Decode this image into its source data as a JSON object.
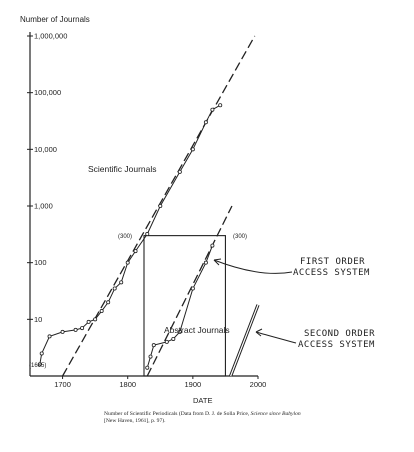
{
  "chart_data": {
    "type": "line",
    "y_scale": "log",
    "ylabel": "Number of Journals",
    "xlabel": "DATE",
    "xlim": [
      1650,
      2000
    ],
    "ylim": [
      1,
      1000000
    ],
    "x_ticks": [
      {
        "value": 1700,
        "label": "1700"
      },
      {
        "value": 1800,
        "label": "1800"
      },
      {
        "value": 1900,
        "label": "1900"
      },
      {
        "value": 2000,
        "label": "2000"
      }
    ],
    "y_ticks": [
      {
        "value": 10,
        "label": "10"
      },
      {
        "value": 100,
        "label": "100"
      },
      {
        "value": 1000,
        "label": "1,000"
      },
      {
        "value": 10000,
        "label": "10,000"
      },
      {
        "value": 100000,
        "label": "100,000"
      },
      {
        "value": 1000000,
        "label": "1,000,000"
      }
    ],
    "series": [
      {
        "name": "Scientific Journals",
        "points": [
          [
            1665,
            1.6
          ],
          [
            1668,
            2.5
          ],
          [
            1680,
            5
          ],
          [
            1700,
            6
          ],
          [
            1720,
            6.5
          ],
          [
            1730,
            7
          ],
          [
            1740,
            9
          ],
          [
            1750,
            10
          ],
          [
            1760,
            14
          ],
          [
            1770,
            20
          ],
          [
            1780,
            35
          ],
          [
            1790,
            45
          ],
          [
            1800,
            100
          ],
          [
            1812,
            160
          ],
          [
            1830,
            320
          ],
          [
            1850,
            1000
          ],
          [
            1880,
            4000
          ],
          [
            1900,
            10000
          ],
          [
            1920,
            30000
          ],
          [
            1930,
            50000
          ],
          [
            1942,
            60000
          ]
        ],
        "trend": [
          [
            1700,
            1
          ],
          [
            1995,
            1000000
          ]
        ]
      },
      {
        "name": "Abstract Journals",
        "points": [
          [
            1830,
            1.4
          ],
          [
            1835,
            2.2
          ],
          [
            1840,
            3.5
          ],
          [
            1860,
            4
          ],
          [
            1870,
            4.5
          ],
          [
            1880,
            6
          ],
          [
            1900,
            35
          ],
          [
            1920,
            100
          ],
          [
            1930,
            200
          ]
        ],
        "trend": [
          [
            1830,
            1
          ],
          [
            1960,
            1000
          ]
        ]
      }
    ],
    "second_order_line": [
      [
        1958,
        1
      ],
      [
        2000,
        18
      ]
    ],
    "box": {
      "x_range": [
        1825,
        1950
      ],
      "y_range": [
        1,
        300
      ]
    },
    "annotations": {
      "start_label": "(1665)",
      "level_left": "(300)",
      "level_right": "(300)",
      "first_order_line1": "FIRST ORDER",
      "first_order_line2": "ACCESS SYSTEM",
      "second_order_line1": "SECOND ORDER",
      "second_order_line2": "ACCESS SYSTEM"
    }
  },
  "caption": {
    "lead": "Number of Scientific Periodicals (Data from D. J. de Solla Price,",
    "title": "Science since Babylon",
    "tail": "[New Haven, 1961], p. 97)."
  }
}
